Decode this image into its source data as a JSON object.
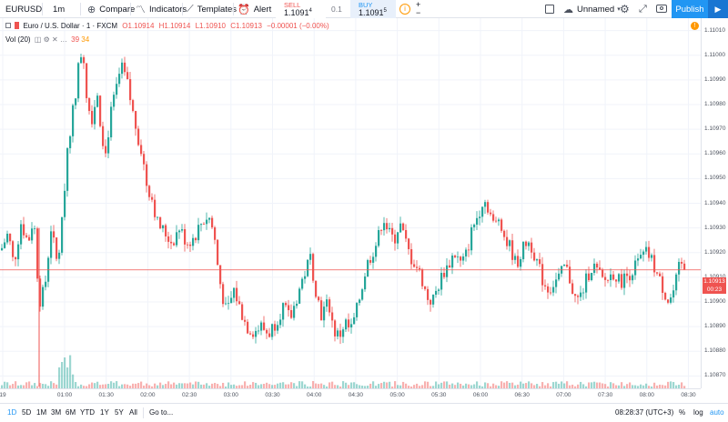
{
  "toolbar": {
    "symbol": "EURUSD",
    "interval": "1m",
    "compare": "Compare",
    "indicators": "Indicators",
    "templates": "Templates",
    "alert": "Alert",
    "sell_label": "SELL",
    "sell_price": "1.1091",
    "sell_price_sup": "4",
    "quantity": "0.1",
    "buy_label": "BUY",
    "buy_price": "1.1091",
    "buy_price_sup": "5",
    "plus": "+",
    "minus": "−",
    "layout_name": "Unnamed",
    "publish": "Publish",
    "icons": [
      "plus-circle-icon",
      "indicators-icon",
      "templates-icon",
      "alarm-clock-icon",
      "info-icon",
      "square-icon",
      "cloud-icon",
      "gear-icon",
      "fullscreen-icon",
      "camera-icon",
      "play-icon"
    ]
  },
  "legend": {
    "title": "Euro / U.S. Dollar · 1 · FXCM",
    "open": "O1.10914",
    "high": "H1.10914",
    "low": "L1.10910",
    "close": "C1.10913",
    "change": "−0.00001 (−0.00%)",
    "vol_label": "Vol (20)",
    "vol_a": "39",
    "vol_b": "34"
  },
  "colors": {
    "up": "#26a69a",
    "down": "#ef5350",
    "accent": "#2196f3",
    "grid": "#f0f3fa"
  },
  "price_axis": {
    "ticks": [
      "1.11010",
      "1.11000",
      "1.10990",
      "1.10980",
      "1.10970",
      "1.10960",
      "1.10950",
      "1.10940",
      "1.10930",
      "1.10920",
      "1.10910",
      "1.10900",
      "1.10890",
      "1.10880",
      "1.10870"
    ],
    "last_price": "1.10913",
    "countdown": "00:23"
  },
  "time_axis": {
    "ticks": [
      "19",
      "01:00",
      "01:30",
      "02:00",
      "02:30",
      "03:00",
      "03:30",
      "04:00",
      "04:30",
      "05:00",
      "05:30",
      "06:00",
      "06:30",
      "07:00",
      "07:30",
      "08:00",
      "08:30"
    ]
  },
  "bottom": {
    "ranges": [
      "1D",
      "5D",
      "1M",
      "3M",
      "6M",
      "YTD",
      "1Y",
      "5Y",
      "All"
    ],
    "active_range": "1D",
    "goto": "Go to...",
    "clock": "08:28:37 (UTC+3)",
    "percent": "%",
    "log": "log",
    "auto": "auto"
  },
  "chart_data": {
    "type": "candlestick",
    "symbol": "EURUSD",
    "interval": "1m",
    "ylim": [
      1.10865,
      1.11015
    ],
    "x_start": "00:36",
    "x_end": "08:28",
    "close_path": [
      [
        0,
        1.10921
      ],
      [
        8,
        1.10928
      ],
      [
        14,
        1.10915
      ],
      [
        22,
        1.10932
      ],
      [
        30,
        1.10924
      ],
      [
        36,
        1.10935
      ],
      [
        42,
        1.109
      ],
      [
        48,
        1.10905
      ],
      [
        55,
        1.1093
      ],
      [
        62,
        1.10915
      ],
      [
        68,
        1.10935
      ],
      [
        72,
        1.1096
      ],
      [
        78,
        1.10975
      ],
      [
        82,
        1.10985
      ],
      [
        86,
        1.10998
      ],
      [
        90,
        1.11003
      ],
      [
        95,
        1.1098
      ],
      [
        100,
        1.10975
      ],
      [
        106,
        1.10985
      ],
      [
        110,
        1.1097
      ],
      [
        115,
        1.1096
      ],
      [
        120,
        1.10975
      ],
      [
        126,
        1.10985
      ],
      [
        132,
        1.10995
      ],
      [
        138,
        1.1099
      ],
      [
        144,
        1.10978
      ],
      [
        150,
        1.10968
      ],
      [
        155,
        1.1096
      ],
      [
        160,
        1.10948
      ],
      [
        166,
        1.10942
      ],
      [
        172,
        1.10932
      ],
      [
        180,
        1.10928
      ],
      [
        188,
        1.10924
      ],
      [
        196,
        1.1093
      ],
      [
        204,
        1.10924
      ],
      [
        212,
        1.10926
      ],
      [
        220,
        1.10932
      ],
      [
        228,
        1.10935
      ],
      [
        234,
        1.10928
      ],
      [
        238,
        1.10915
      ],
      [
        242,
        1.10905
      ],
      [
        248,
        1.10895
      ],
      [
        256,
        1.10905
      ],
      [
        262,
        1.10898
      ],
      [
        270,
        1.1089
      ],
      [
        278,
        1.10888
      ],
      [
        286,
        1.1089
      ],
      [
        294,
        1.10887
      ],
      [
        302,
        1.10892
      ],
      [
        310,
        1.10898
      ],
      [
        318,
        1.10893
      ],
      [
        326,
        1.10903
      ],
      [
        334,
        1.10912
      ],
      [
        340,
        1.10918
      ],
      [
        346,
        1.10905
      ],
      [
        352,
        1.10895
      ],
      [
        360,
        1.109
      ],
      [
        366,
        1.10888
      ],
      [
        372,
        1.10886
      ],
      [
        378,
        1.10892
      ],
      [
        384,
        1.10888
      ],
      [
        390,
        1.10895
      ],
      [
        396,
        1.10905
      ],
      [
        402,
        1.10915
      ],
      [
        408,
        1.1092
      ],
      [
        414,
        1.10925
      ],
      [
        420,
        1.10935
      ],
      [
        426,
        1.10928
      ],
      [
        432,
        1.10925
      ],
      [
        438,
        1.10932
      ],
      [
        444,
        1.10925
      ],
      [
        450,
        1.10918
      ],
      [
        456,
        1.10915
      ],
      [
        462,
        1.1091
      ],
      [
        468,
        1.10902
      ],
      [
        474,
        1.109
      ],
      [
        480,
        1.10906
      ],
      [
        486,
        1.10912
      ],
      [
        492,
        1.10915
      ],
      [
        498,
        1.1092
      ],
      [
        506,
        1.10915
      ],
      [
        512,
        1.1092
      ],
      [
        518,
        1.1093
      ],
      [
        524,
        1.10935
      ],
      [
        530,
        1.10942
      ],
      [
        536,
        1.10938
      ],
      [
        542,
        1.1093
      ],
      [
        548,
        1.10935
      ],
      [
        554,
        1.10925
      ],
      [
        560,
        1.10922
      ],
      [
        566,
        1.10915
      ],
      [
        572,
        1.1092
      ],
      [
        578,
        1.10925
      ],
      [
        584,
        1.10922
      ],
      [
        590,
        1.10915
      ],
      [
        596,
        1.10908
      ],
      [
        602,
        1.10905
      ],
      [
        608,
        1.10908
      ],
      [
        614,
        1.1091
      ],
      [
        620,
        1.10915
      ],
      [
        626,
        1.10908
      ],
      [
        632,
        1.109
      ],
      [
        638,
        1.10903
      ],
      [
        644,
        1.1091
      ],
      [
        650,
        1.10915
      ],
      [
        656,
        1.10912
      ],
      [
        662,
        1.10908
      ],
      [
        668,
        1.1091
      ],
      [
        674,
        1.10912
      ],
      [
        680,
        1.10908
      ],
      [
        686,
        1.1091
      ],
      [
        692,
        1.10912
      ],
      [
        698,
        1.10915
      ],
      [
        704,
        1.10918
      ],
      [
        710,
        1.1092
      ],
      [
        716,
        1.10916
      ],
      [
        722,
        1.1091
      ],
      [
        728,
        1.10905
      ],
      [
        734,
        1.109
      ],
      [
        740,
        1.10905
      ],
      [
        746,
        1.10915
      ],
      [
        752,
        1.10913
      ]
    ],
    "volume_spike_at": [
      72,
      75,
      78
    ],
    "last_price": 1.10913
  }
}
